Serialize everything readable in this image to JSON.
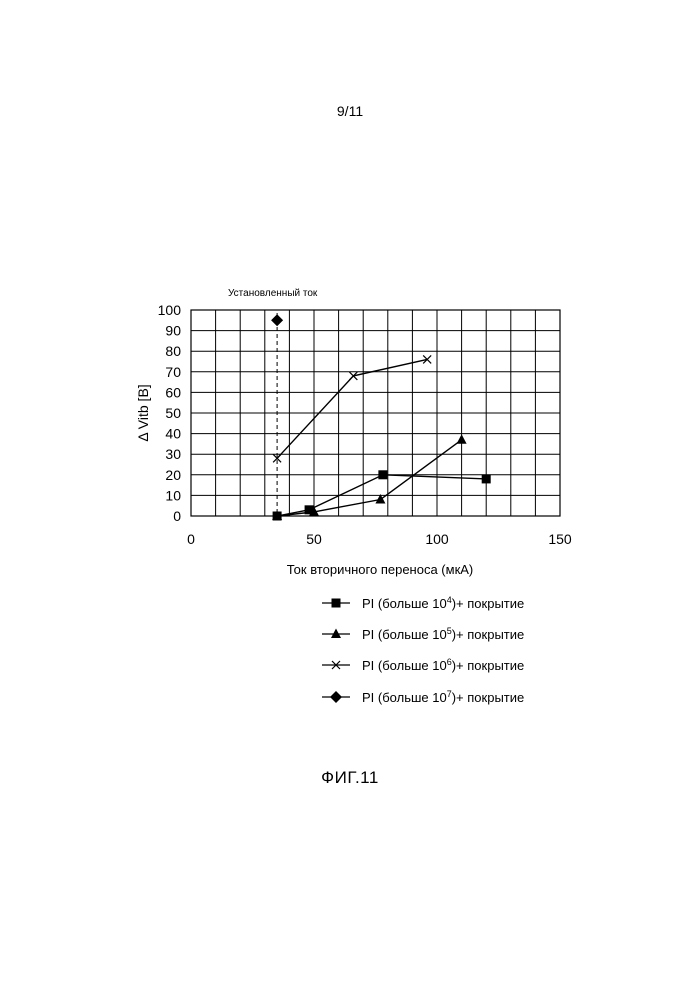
{
  "page": {
    "page_number": "9/11",
    "figure_caption": "ФИГ.11"
  },
  "chart_data": {
    "type": "line",
    "title": "",
    "xlabel": "Ток вторичного переноса (мкА)",
    "ylabel": "Δ Vitb [В]",
    "xlim": [
      0,
      150
    ],
    "ylim": [
      0,
      100
    ],
    "x_ticks": [
      0,
      50,
      100,
      150
    ],
    "y_ticks": [
      0,
      10,
      20,
      30,
      40,
      50,
      60,
      70,
      80,
      90,
      100
    ],
    "grid": true,
    "legend_position": "bottom",
    "annotation": {
      "text": "Установленный ток",
      "x": 35
    },
    "series": [
      {
        "legend_base": "PI (больше 10",
        "legend_exp": "4",
        "legend_tail": ")+ покрытие",
        "marker": "square",
        "points": [
          [
            35,
            0
          ],
          [
            48,
            3
          ],
          [
            78,
            20
          ],
          [
            120,
            18
          ]
        ]
      },
      {
        "legend_base": "PI (больше 10",
        "legend_exp": "5",
        "legend_tail": ")+ покрытие",
        "marker": "triangle",
        "points": [
          [
            35,
            0
          ],
          [
            50,
            2
          ],
          [
            77,
            8
          ],
          [
            110,
            37
          ]
        ]
      },
      {
        "legend_base": "PI (больше 10",
        "legend_exp": "6",
        "legend_tail": ")+ покрытие",
        "marker": "cross",
        "points": [
          [
            35,
            28
          ],
          [
            66,
            68
          ],
          [
            96,
            76
          ]
        ]
      },
      {
        "legend_base": "PI (больше 10",
        "legend_exp": "7",
        "legend_tail": ")+  покрытие",
        "marker": "diamond",
        "points": [
          [
            35,
            95
          ]
        ]
      }
    ]
  }
}
